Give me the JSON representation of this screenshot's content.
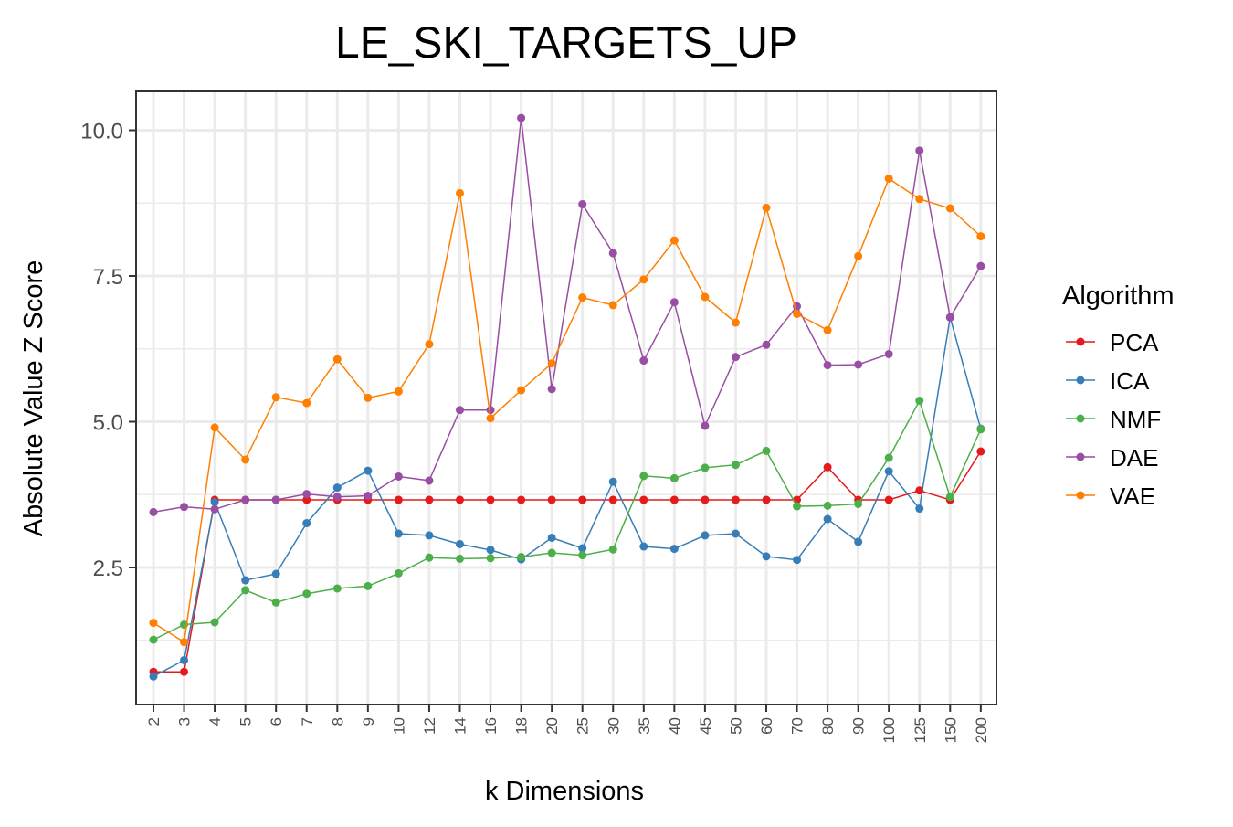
{
  "chart_data": {
    "type": "line",
    "title": "LE_SKI_TARGETS_UP",
    "xlabel": "k Dimensions",
    "ylabel": "Absolute Value Z Score",
    "categories": [
      "2",
      "3",
      "4",
      "5",
      "6",
      "7",
      "8",
      "9",
      "10",
      "12",
      "14",
      "16",
      "18",
      "20",
      "25",
      "30",
      "35",
      "40",
      "45",
      "50",
      "60",
      "70",
      "80",
      "90",
      "100",
      "125",
      "150",
      "200"
    ],
    "yticks": [
      "2.5",
      "5.0",
      "7.5",
      "10.0"
    ],
    "ylim": [
      0.2,
      10.65
    ],
    "legend_title": "Algorithm",
    "legend_position": "right",
    "grid": true,
    "series": [
      {
        "name": "PCA",
        "color": "#e41a1c",
        "values": [
          0.71,
          0.71,
          3.66,
          3.66,
          3.66,
          3.66,
          3.66,
          3.66,
          3.66,
          3.66,
          3.66,
          3.66,
          3.66,
          3.66,
          3.66,
          3.66,
          3.66,
          3.66,
          3.66,
          3.66,
          3.66,
          3.66,
          4.22,
          3.66,
          3.66,
          3.82,
          3.66,
          4.49
        ]
      },
      {
        "name": "ICA",
        "color": "#377eb8",
        "values": [
          0.63,
          0.91,
          3.62,
          2.28,
          2.39,
          3.26,
          3.87,
          4.16,
          3.08,
          3.05,
          2.9,
          2.8,
          2.64,
          3.01,
          2.83,
          3.97,
          2.86,
          2.82,
          3.05,
          3.08,
          2.69,
          2.63,
          3.33,
          2.94,
          4.15,
          3.51,
          6.79,
          4.88
        ]
      },
      {
        "name": "NMF",
        "color": "#4daf4a",
        "values": [
          1.26,
          1.52,
          1.56,
          2.11,
          1.9,
          2.05,
          2.14,
          2.18,
          2.4,
          2.67,
          2.65,
          2.66,
          2.68,
          2.75,
          2.71,
          2.81,
          4.07,
          4.03,
          4.21,
          4.26,
          4.5,
          3.55,
          3.56,
          3.59,
          4.38,
          5.36,
          3.71,
          4.87
        ]
      },
      {
        "name": "DAE",
        "color": "#984ea3",
        "values": [
          3.45,
          3.54,
          3.5,
          3.66,
          3.66,
          3.76,
          3.71,
          3.73,
          4.06,
          3.99,
          5.2,
          5.2,
          10.21,
          5.56,
          8.73,
          7.89,
          6.05,
          7.05,
          4.93,
          6.11,
          6.32,
          6.98,
          5.97,
          5.98,
          6.16,
          9.65,
          6.79,
          7.67
        ]
      },
      {
        "name": "VAE",
        "color": "#ff7f00",
        "values": [
          1.55,
          1.22,
          4.9,
          4.35,
          5.42,
          5.32,
          6.07,
          5.41,
          5.52,
          6.33,
          8.92,
          5.06,
          5.54,
          6.0,
          7.13,
          7.0,
          7.44,
          8.11,
          7.14,
          6.7,
          8.67,
          6.85,
          6.57,
          7.84,
          9.17,
          8.82,
          8.66,
          8.18
        ]
      }
    ]
  }
}
